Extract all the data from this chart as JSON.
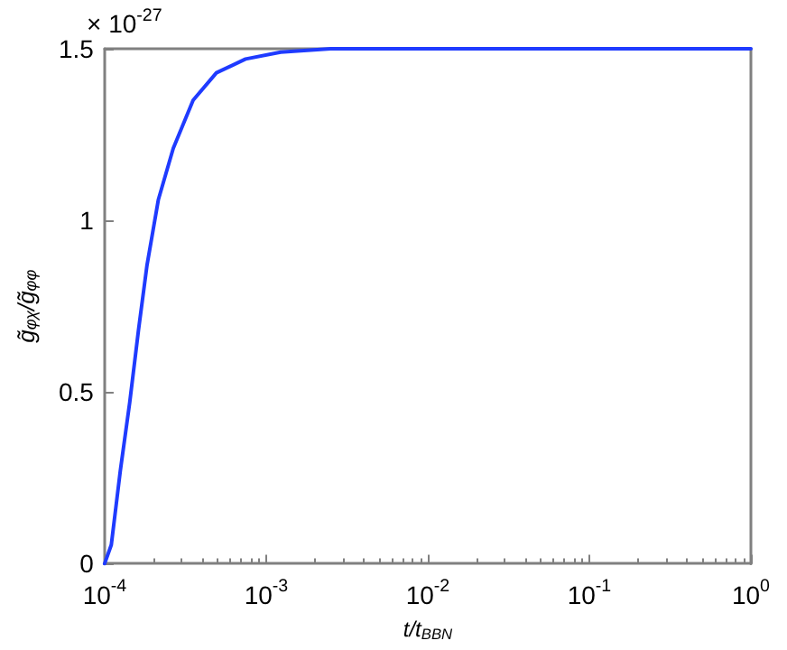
{
  "chart_data": {
    "type": "line",
    "xlabel": "t/t$_{BBN}$",
    "ylabel": "g̃$_{φχ}$/g̃$_{φφ}$",
    "annotations": [
      "× 10$^{-27}$"
    ],
    "log": "x",
    "grid": false,
    "marker": "none",
    "line_style": "solid",
    "xlim": [
      0.0001,
      1
    ],
    "xticks": [
      {
        "value": 0.0001,
        "label": "10$^{-4}$"
      },
      {
        "value": 0.001,
        "label": "10$^{-3}$"
      },
      {
        "value": 0.01,
        "label": "10$^{-2}$"
      },
      {
        "value": 0.1,
        "label": "10$^{-1}$"
      },
      {
        "value": 1,
        "label": "10$^{0}$"
      }
    ],
    "ylim": [
      0,
      1.5
    ],
    "yticks": [
      0,
      0.5,
      1,
      1.5
    ],
    "x": [
      0.0001,
      0.00011,
      0.000125,
      0.000143,
      0.000162,
      0.000183,
      0.000215,
      0.000266,
      0.000353,
      0.000492,
      0.000745,
      0.00123,
      0.0025,
      1
    ],
    "series": [
      {
        "color": "#1f3bff",
        "values": [
          0,
          0.055,
          0.27,
          0.47,
          0.68,
          0.87,
          1.06,
          1.21,
          1.35,
          1.43,
          1.47,
          1.49,
          1.5,
          1.5
        ]
      }
    ]
  }
}
